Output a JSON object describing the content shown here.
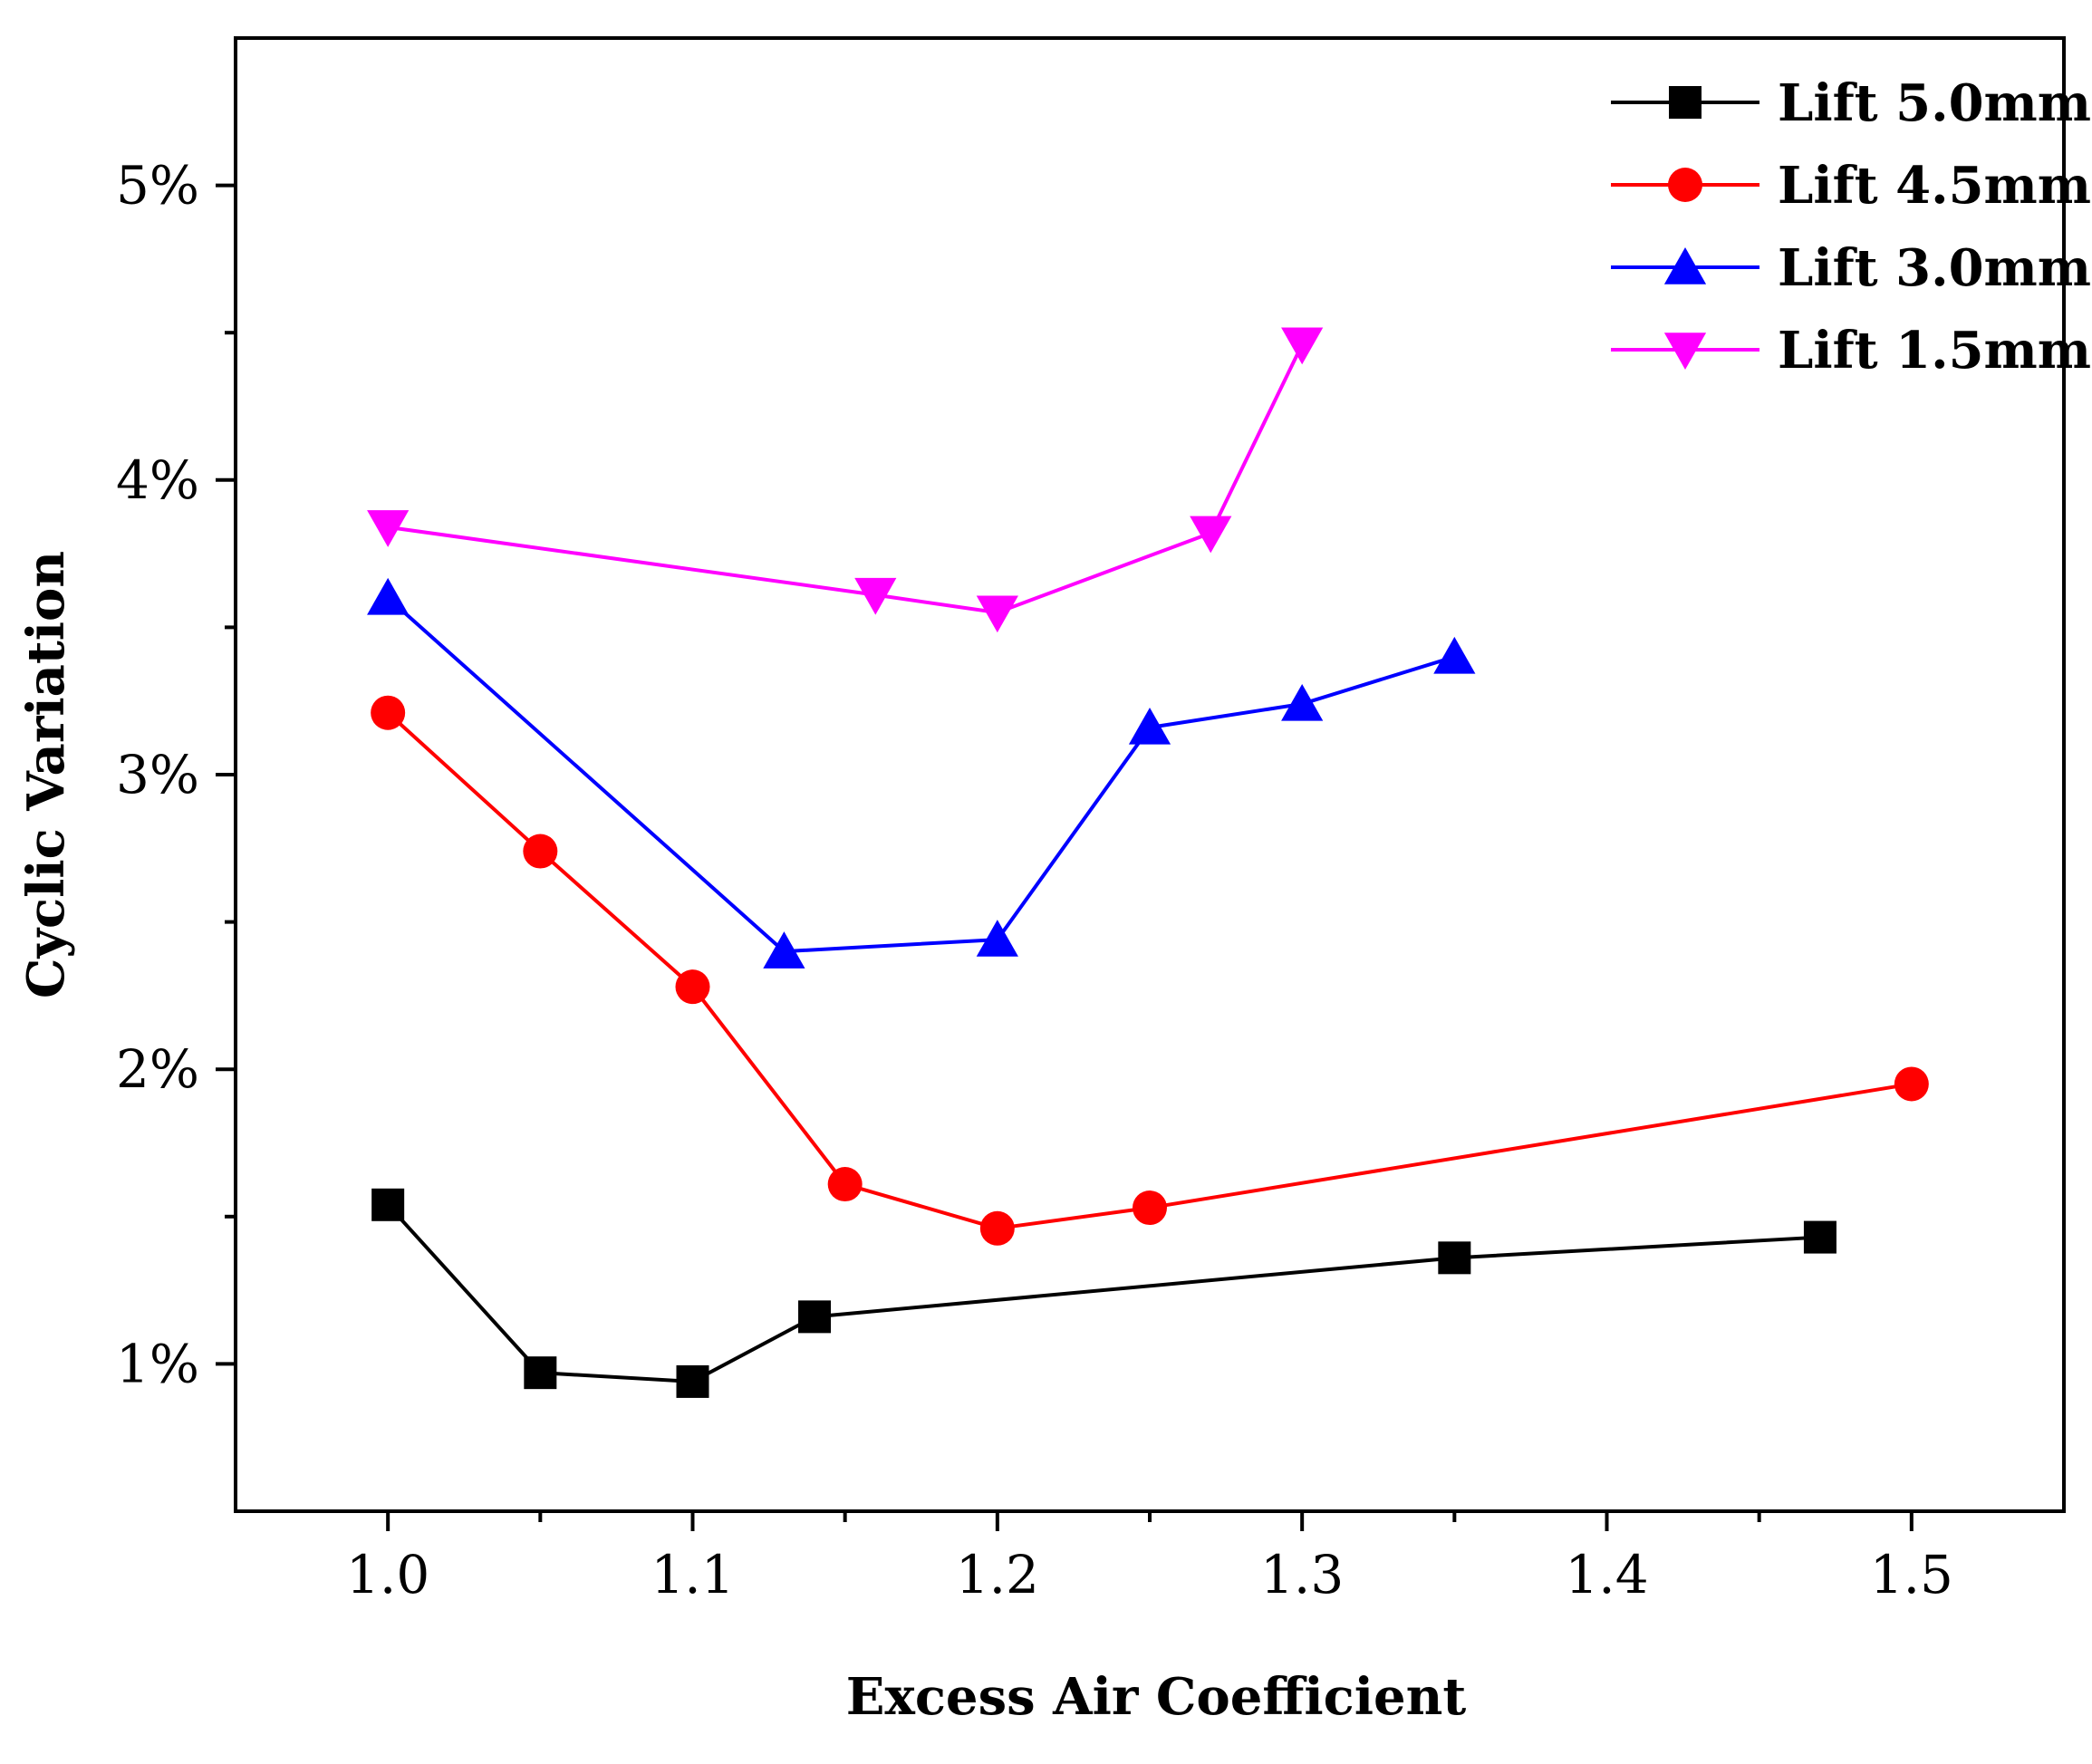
{
  "chart_data": {
    "type": "line",
    "title": "",
    "xlabel": "Excess Air Coefficient",
    "ylabel": "Cyclic Variation",
    "xlim": [
      0.95,
      1.55
    ],
    "ylim": [
      0.5,
      5.5
    ],
    "x_ticks": [
      {
        "value": 1.0,
        "label": "1.0"
      },
      {
        "value": 1.1,
        "label": "1.1"
      },
      {
        "value": 1.2,
        "label": "1.2"
      },
      {
        "value": 1.3,
        "label": "1.3"
      },
      {
        "value": 1.4,
        "label": "1.4"
      },
      {
        "value": 1.5,
        "label": "1.5"
      }
    ],
    "x_minor_ticks": [
      1.05,
      1.15,
      1.25,
      1.35,
      1.45
    ],
    "y_ticks": [
      {
        "value": 1,
        "label": "1%"
      },
      {
        "value": 2,
        "label": "2%"
      },
      {
        "value": 3,
        "label": "3%"
      },
      {
        "value": 4,
        "label": "4%"
      },
      {
        "value": 5,
        "label": "5%"
      }
    ],
    "y_minor_ticks": [
      1.5,
      2.5,
      3.5,
      4.5
    ],
    "grid": false,
    "legend_position": "top-right",
    "series": [
      {
        "name": "Lift 5.0mm",
        "color": "#000000",
        "marker": "square",
        "x": [
          1.0,
          1.05,
          1.1,
          1.14,
          1.35,
          1.47
        ],
        "values": [
          1.54,
          0.97,
          0.94,
          1.16,
          1.36,
          1.43
        ]
      },
      {
        "name": "Lift 4.5mm",
        "color": "#ff0000",
        "marker": "circle",
        "x": [
          1.0,
          1.05,
          1.1,
          1.15,
          1.2,
          1.25,
          1.5
        ],
        "values": [
          3.21,
          2.74,
          2.28,
          1.61,
          1.46,
          1.53,
          1.95
        ]
      },
      {
        "name": "Lift 3.0mm",
        "color": "#0000ff",
        "marker": "triangle-up",
        "x": [
          1.0,
          1.13,
          1.2,
          1.25,
          1.3,
          1.35
        ],
        "values": [
          3.6,
          2.4,
          2.44,
          3.16,
          3.24,
          3.4
        ]
      },
      {
        "name": "Lift 1.5mm",
        "color": "#ff00ff",
        "marker": "triangle-down",
        "x": [
          1.0,
          1.16,
          1.2,
          1.27,
          1.3
        ],
        "values": [
          3.84,
          3.61,
          3.55,
          3.82,
          4.46
        ]
      }
    ]
  }
}
